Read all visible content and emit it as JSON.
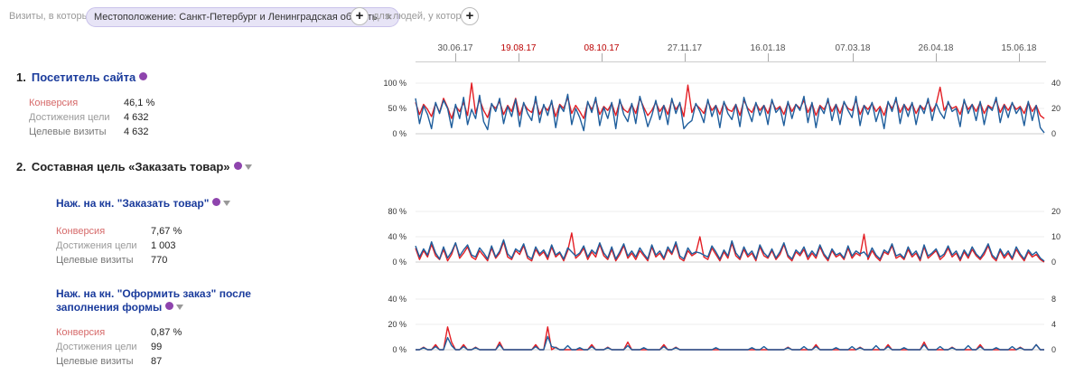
{
  "filter": {
    "prefix": "Визиты, в которых",
    "chip_label": "Местоположение: Санкт-Петербург и Ленинградская область",
    "chip_close": "×",
    "add_label": "+",
    "middle": "для людей, у которых",
    "add2_label": "+"
  },
  "timeline": {
    "dates": [
      {
        "label": "30.06.17",
        "red": false
      },
      {
        "label": "19.08.17",
        "red": true
      },
      {
        "label": "08.10.17",
        "red": true
      },
      {
        "label": "27.11.17",
        "red": false
      },
      {
        "label": "16.01.18",
        "red": false
      },
      {
        "label": "07.03.18",
        "red": false
      },
      {
        "label": "26.04.18",
        "red": false
      },
      {
        "label": "15.06.18",
        "red": false
      }
    ]
  },
  "goals": [
    {
      "number": "1.",
      "title": "Посетитель сайта",
      "metrics": {
        "conv_label": "Конверсия",
        "conv_value": "46,1 %",
        "goal_label": "Достижения цели",
        "goal_value": "4 632",
        "visits_label": "Целевые визиты",
        "visits_value": "4 632"
      }
    },
    {
      "number": "2.",
      "title": "Составная цель «Заказать товар»",
      "steps": [
        {
          "title": "Наж. на кн. \"Заказать товар\"",
          "metrics": {
            "conv_label": "Конверсия",
            "conv_value": "7,67 %",
            "goal_label": "Достижения цели",
            "goal_value": "1 003",
            "visits_label": "Целевые визиты",
            "visits_value": "770"
          }
        },
        {
          "title_line1": "Наж. на кн. \"Оформить заказ\" после",
          "title_line2": "заполнения формы",
          "metrics": {
            "conv_label": "Конверсия",
            "conv_value": "0,87 %",
            "goal_label": "Достижения цели",
            "goal_value": "99",
            "visits_label": "Целевые визиты",
            "visits_value": "87"
          }
        }
      ]
    }
  ],
  "colors": {
    "conversion_line": "#e31e24",
    "visits_line": "#1f5e9c",
    "link": "#1a3b9c",
    "badge": "#8e44ad"
  },
  "chart_data": [
    {
      "type": "line",
      "left_ticks": [
        "100 %",
        "50 %",
        "0 %"
      ],
      "right_ticks": [
        "40",
        "20",
        "0"
      ],
      "ylim_left": [
        0,
        100
      ],
      "ylim_right": [
        0,
        40
      ],
      "series": [
        {
          "values": [
            62,
            38,
            58,
            48,
            34,
            60,
            42,
            70,
            52,
            30,
            55,
            44,
            62,
            36,
            100,
            40,
            68,
            46,
            32,
            58,
            50,
            64,
            38,
            56,
            44,
            70,
            36,
            60,
            48,
            42,
            66,
            38,
            55,
            46,
            62,
            34,
            58,
            50,
            72,
            40,
            56,
            44,
            30,
            62,
            48,
            66,
            38,
            54,
            46,
            60,
            36,
            64,
            48,
            42,
            58,
            40,
            70,
            52,
            36,
            46,
            62,
            44,
            56,
            38,
            66,
            48,
            60,
            34,
            96,
            42,
            58,
            50,
            40,
            64,
            46,
            56,
            38,
            62,
            48,
            44,
            58,
            36,
            66,
            50,
            42,
            60,
            46,
            56,
            40,
            64,
            48,
            54,
            38,
            62,
            44,
            58,
            50,
            66,
            42,
            60,
            36,
            56,
            48,
            64,
            44,
            58,
            40,
            62,
            50,
            46,
            66,
            38,
            56,
            48,
            60,
            44,
            54,
            36,
            62,
            50,
            66,
            42,
            58,
            46,
            60,
            40,
            56,
            48,
            64,
            44,
            58,
            92,
            46,
            60,
            50,
            54,
            38,
            64,
            48,
            58,
            44,
            62,
            40,
            56,
            50,
            66,
            42,
            58,
            46,
            60,
            48,
            54,
            40,
            62,
            44,
            56,
            36,
            30
          ]
        },
        {
          "values": [
            70,
            20,
            55,
            38,
            10,
            62,
            40,
            66,
            50,
            12,
            58,
            30,
            72,
            18,
            48,
            30,
            76,
            24,
            8,
            60,
            44,
            70,
            20,
            54,
            34,
            68,
            14,
            62,
            40,
            26,
            74,
            22,
            58,
            36,
            66,
            12,
            56,
            44,
            78,
            18,
            50,
            32,
            6,
            64,
            42,
            72,
            16,
            52,
            30,
            62,
            10,
            68,
            38,
            24,
            60,
            20,
            74,
            46,
            14,
            36,
            66,
            28,
            56,
            18,
            70,
            40,
            62,
            10,
            20,
            26,
            60,
            44,
            22,
            68,
            34,
            56,
            12,
            64,
            40,
            28,
            58,
            14,
            72,
            46,
            24,
            62,
            36,
            56,
            18,
            68,
            42,
            52,
            16,
            64,
            30,
            58,
            46,
            74,
            22,
            62,
            12,
            54,
            40,
            70,
            26,
            58,
            18,
            64,
            46,
            32,
            74,
            16,
            56,
            38,
            62,
            24,
            50,
            10,
            64,
            44,
            72,
            20,
            58,
            34,
            62,
            18,
            56,
            40,
            70,
            26,
            60,
            42,
            30,
            64,
            44,
            50,
            14,
            68,
            40,
            58,
            26,
            64,
            18,
            54,
            46,
            72,
            22,
            56,
            32,
            62,
            40,
            52,
            16,
            64,
            26,
            56,
            12,
            2
          ]
        }
      ]
    },
    {
      "type": "line",
      "left_ticks": [
        "80 %",
        "40 %",
        "0 %"
      ],
      "right_ticks": [
        "20",
        "10",
        "0"
      ],
      "ylim_left": [
        0,
        80
      ],
      "ylim_right": [
        0,
        20
      ],
      "series": [
        {
          "values": [
            22,
            4,
            18,
            8,
            28,
            10,
            4,
            20,
            2,
            12,
            30,
            6,
            14,
            24,
            8,
            4,
            18,
            10,
            2,
            22,
            6,
            14,
            32,
            8,
            4,
            18,
            12,
            26,
            6,
            2,
            20,
            10,
            16,
            4,
            24,
            8,
            14,
            2,
            18,
            46,
            6,
            12,
            22,
            4,
            16,
            8,
            28,
            10,
            4,
            20,
            2,
            12,
            26,
            6,
            14,
            4,
            18,
            10,
            2,
            24,
            8,
            14,
            4,
            20,
            12,
            28,
            6,
            2,
            18,
            10,
            14,
            40,
            8,
            4,
            22,
            12,
            2,
            16,
            6,
            30,
            10,
            4,
            20,
            8,
            14,
            2,
            24,
            10,
            6,
            18,
            4,
            12,
            28,
            8,
            2,
            16,
            10,
            20,
            4,
            14,
            6,
            24,
            10,
            2,
            18,
            8,
            12,
            4,
            22,
            6,
            14,
            10,
            44,
            4,
            18,
            8,
            2,
            16,
            12,
            26,
            6,
            10,
            4,
            20,
            8,
            14,
            2,
            24,
            6,
            12,
            18,
            4,
            10,
            22,
            8,
            14,
            2,
            16,
            6,
            20,
            10,
            4,
            12,
            26,
            8,
            2,
            18,
            6,
            14,
            4,
            20,
            10,
            2,
            16,
            8,
            12,
            4,
            0
          ]
        },
        {
          "values": [
            32,
            10,
            26,
            14,
            40,
            18,
            6,
            30,
            8,
            20,
            38,
            12,
            24,
            34,
            14,
            10,
            28,
            18,
            6,
            32,
            10,
            22,
            44,
            16,
            8,
            26,
            20,
            36,
            12,
            6,
            30,
            16,
            24,
            10,
            34,
            14,
            20,
            6,
            28,
            20,
            12,
            18,
            32,
            10,
            24,
            16,
            38,
            18,
            8,
            30,
            6,
            20,
            36,
            12,
            22,
            10,
            28,
            16,
            6,
            34,
            14,
            22,
            8,
            30,
            18,
            40,
            12,
            6,
            28,
            16,
            20,
            18,
            14,
            10,
            32,
            20,
            6,
            24,
            12,
            42,
            18,
            8,
            30,
            14,
            22,
            6,
            34,
            18,
            10,
            26,
            8,
            20,
            38,
            14,
            6,
            24,
            16,
            30,
            10,
            22,
            12,
            34,
            16,
            6,
            26,
            14,
            18,
            8,
            32,
            12,
            22,
            16,
            20,
            10,
            28,
            14,
            6,
            24,
            18,
            36,
            12,
            16,
            8,
            30,
            14,
            22,
            6,
            34,
            12,
            18,
            26,
            10,
            16,
            32,
            14,
            22,
            6,
            24,
            12,
            30,
            16,
            8,
            20,
            36,
            14,
            6,
            26,
            12,
            22,
            8,
            30,
            16,
            6,
            24,
            14,
            20,
            8,
            2
          ]
        }
      ]
    },
    {
      "type": "line",
      "left_ticks": [
        "40 %",
        "20 %",
        "0 %"
      ],
      "right_ticks": [
        "8",
        "4",
        "0"
      ],
      "ylim_left": [
        0,
        40
      ],
      "ylim_right": [
        0,
        8
      ],
      "series": [
        {
          "values": [
            0,
            0,
            2,
            0,
            0,
            4,
            0,
            0,
            18,
            6,
            0,
            0,
            4,
            0,
            0,
            2,
            0,
            0,
            0,
            0,
            0,
            6,
            0,
            0,
            0,
            0,
            0,
            0,
            0,
            0,
            4,
            0,
            0,
            18,
            0,
            2,
            0,
            0,
            0,
            0,
            0,
            0,
            0,
            0,
            4,
            0,
            0,
            0,
            2,
            0,
            0,
            0,
            0,
            6,
            0,
            0,
            0,
            0,
            0,
            0,
            0,
            0,
            4,
            0,
            0,
            2,
            0,
            0,
            0,
            0,
            0,
            0,
            0,
            0,
            0,
            0,
            0,
            0,
            0,
            0,
            0,
            0,
            0,
            0,
            0,
            0,
            0,
            0,
            0,
            0,
            0,
            0,
            0,
            2,
            0,
            0,
            0,
            0,
            0,
            0,
            4,
            0,
            0,
            0,
            0,
            0,
            0,
            0,
            0,
            0,
            0,
            2,
            0,
            0,
            0,
            0,
            0,
            0,
            4,
            0,
            0,
            0,
            0,
            0,
            0,
            0,
            0,
            6,
            0,
            0,
            0,
            0,
            0,
            0,
            2,
            0,
            0,
            0,
            0,
            0,
            0,
            4,
            0,
            0,
            0,
            0,
            0,
            0,
            0,
            0,
            0,
            2,
            0,
            0,
            0,
            4,
            0,
            0
          ]
        },
        {
          "values": [
            0,
            0,
            4,
            0,
            0,
            6,
            0,
            0,
            24,
            8,
            0,
            0,
            6,
            0,
            0,
            4,
            0,
            0,
            0,
            0,
            0,
            10,
            0,
            0,
            0,
            0,
            0,
            0,
            0,
            0,
            6,
            0,
            0,
            26,
            6,
            4,
            0,
            0,
            8,
            0,
            0,
            4,
            0,
            0,
            6,
            0,
            0,
            0,
            4,
            0,
            0,
            0,
            0,
            8,
            0,
            0,
            0,
            4,
            0,
            0,
            0,
            0,
            6,
            0,
            0,
            4,
            0,
            0,
            0,
            0,
            0,
            0,
            0,
            0,
            0,
            4,
            0,
            0,
            0,
            0,
            0,
            0,
            0,
            0,
            4,
            0,
            0,
            6,
            0,
            0,
            0,
            0,
            0,
            4,
            0,
            0,
            0,
            6,
            0,
            0,
            6,
            0,
            0,
            0,
            0,
            4,
            0,
            0,
            0,
            6,
            0,
            4,
            0,
            0,
            0,
            8,
            0,
            0,
            6,
            0,
            0,
            0,
            4,
            0,
            0,
            0,
            0,
            10,
            0,
            0,
            0,
            6,
            0,
            0,
            4,
            0,
            0,
            0,
            8,
            0,
            0,
            6,
            0,
            0,
            0,
            4,
            0,
            0,
            0,
            6,
            0,
            4,
            0,
            0,
            0,
            10,
            0,
            0
          ]
        }
      ]
    }
  ]
}
